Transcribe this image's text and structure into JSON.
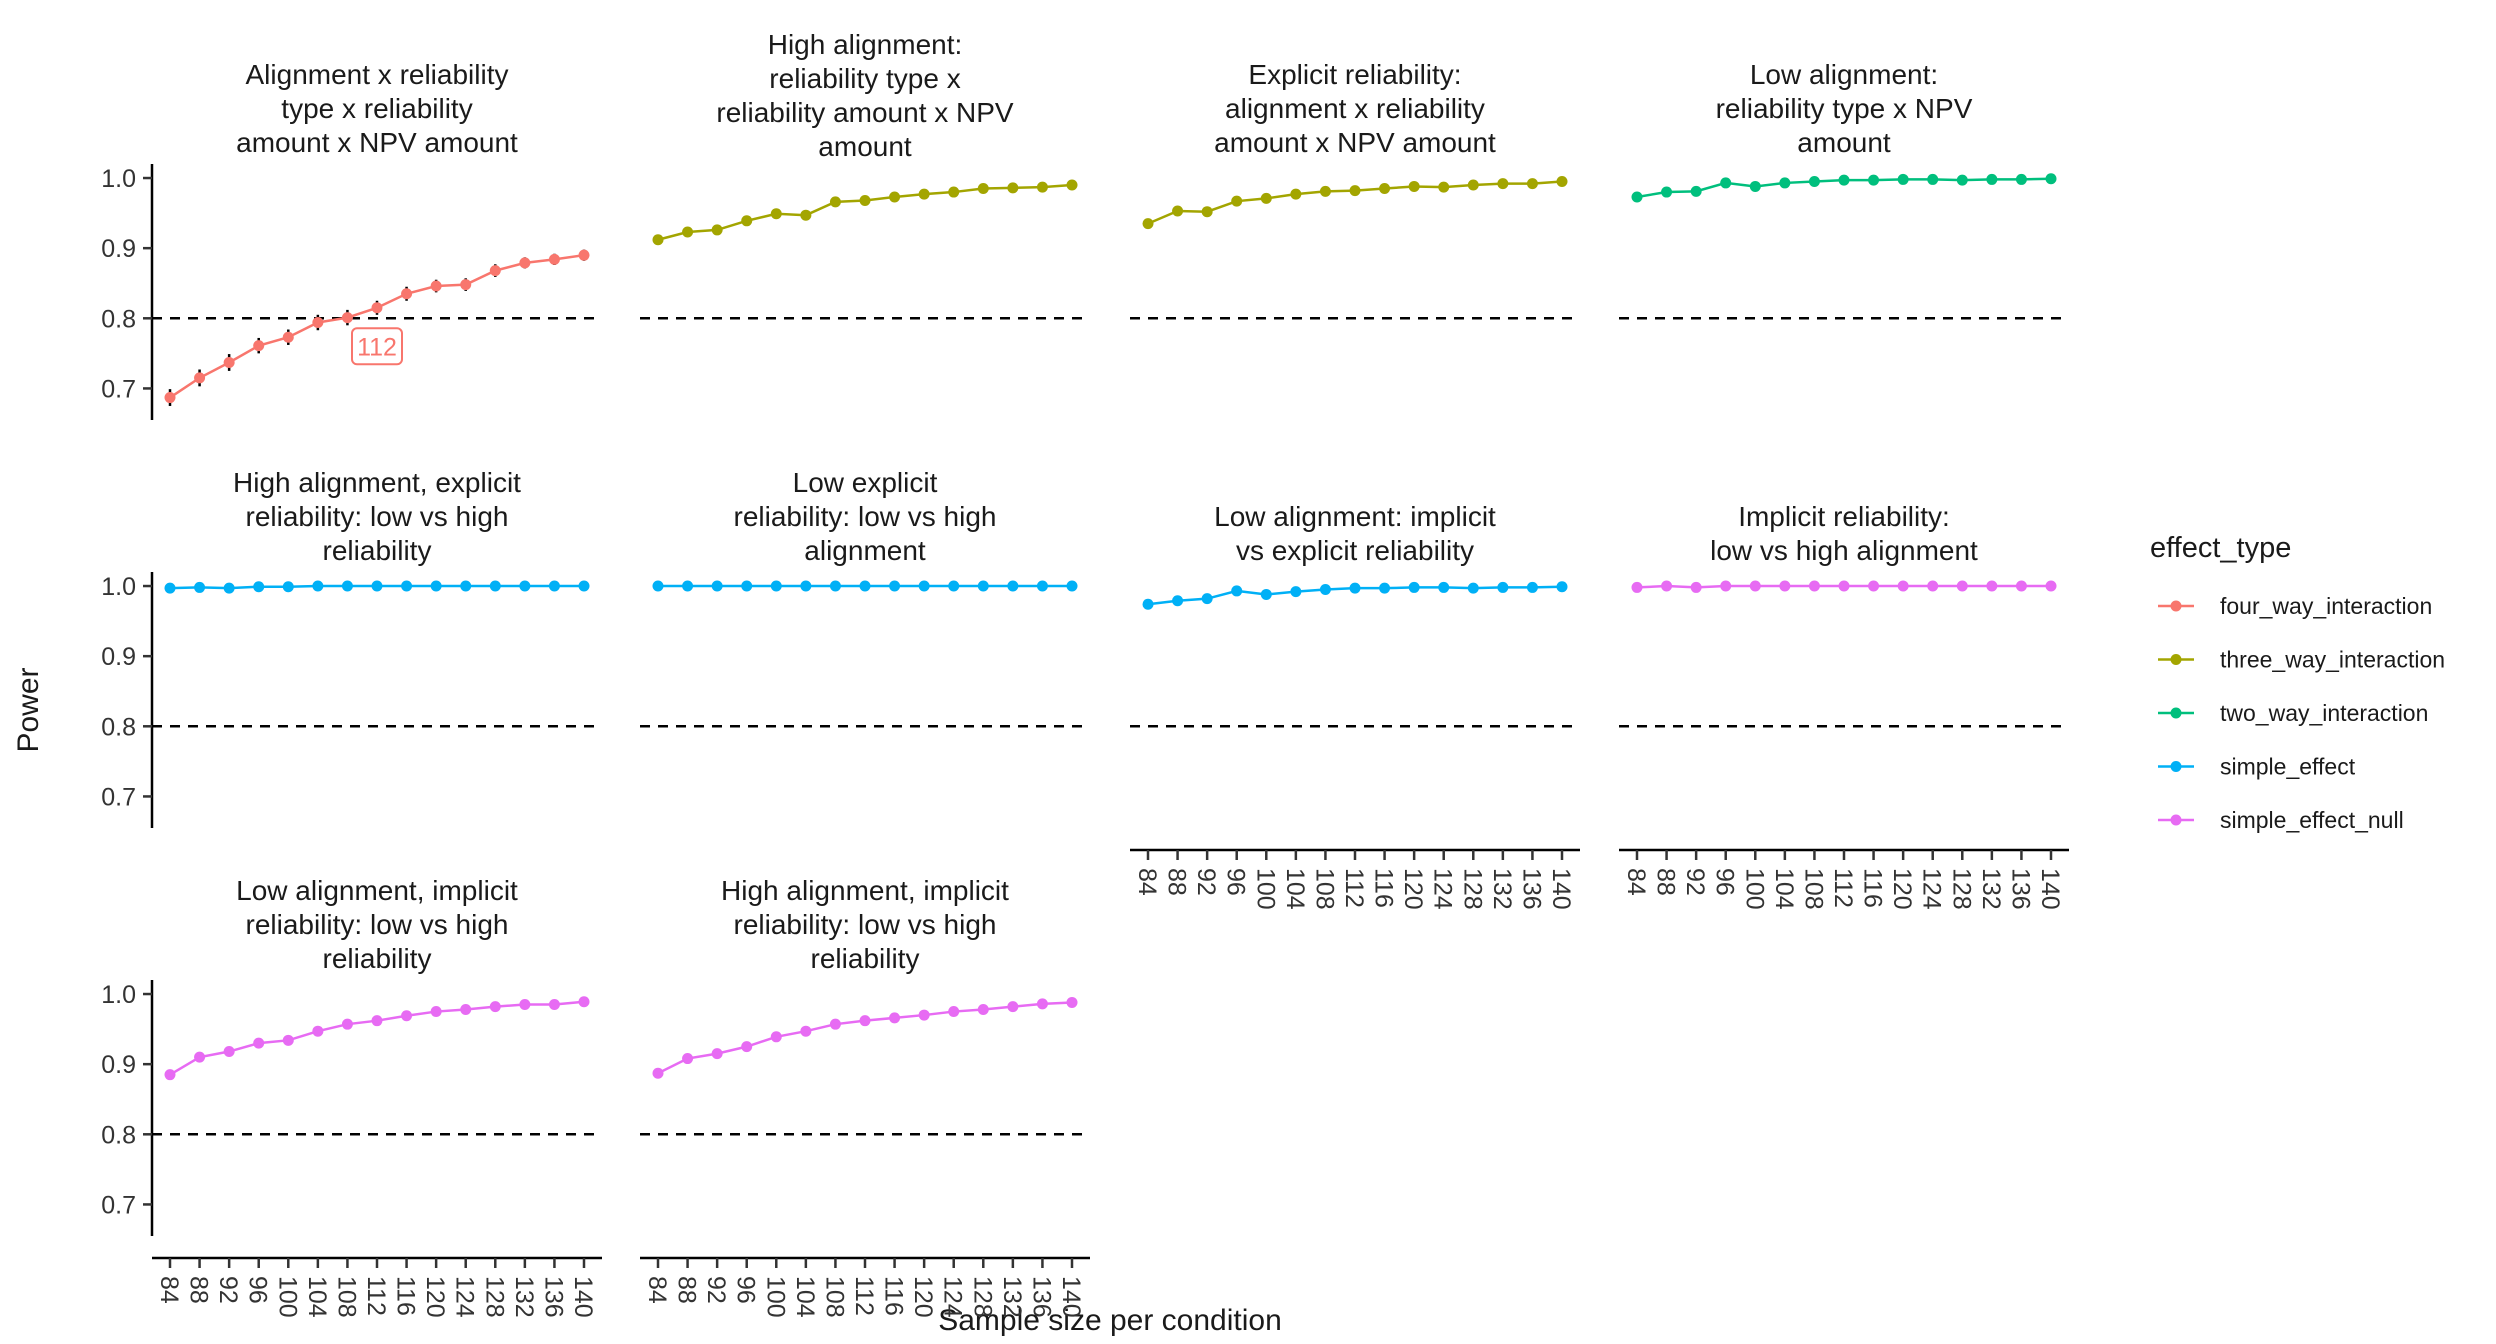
{
  "chart_data": {
    "type": "line",
    "xlabel": "Sample size per condition",
    "ylabel": "Power",
    "ylim": [
      0.655,
      1.02
    ],
    "yticks": [
      0.7,
      0.8,
      0.9,
      1.0
    ],
    "ytick_labels": [
      "0.7",
      "0.8",
      "0.9",
      "1.0"
    ],
    "reference_line": 0.8,
    "x": [
      84,
      88,
      92,
      96,
      100,
      104,
      108,
      112,
      116,
      120,
      124,
      128,
      132,
      136,
      140
    ],
    "x_labels": [
      "84",
      "88",
      "92",
      "96",
      "100",
      "104",
      "108",
      "112",
      "116",
      "120",
      "124",
      "128",
      "132",
      "136",
      "140"
    ],
    "legend": {
      "title": "effect_type",
      "position": "right",
      "entries": [
        {
          "name": "four_way_interaction",
          "color": "#F8766D"
        },
        {
          "name": "three_way_interaction",
          "color": "#A3A500"
        },
        {
          "name": "two_way_interaction",
          "color": "#00BF7D"
        },
        {
          "name": "simple_effect",
          "color": "#00B0F6"
        },
        {
          "name": "simple_effect_null",
          "color": "#E76BF3"
        }
      ]
    },
    "panels": [
      {
        "title_lines": [
          "Alignment x reliability",
          "type x reliability",
          "amount x NPV amount"
        ],
        "effect_type": "four_way_interaction",
        "color": "#F8766D",
        "values": [
          0.687,
          0.715,
          0.737,
          0.761,
          0.773,
          0.794,
          0.801,
          0.815,
          0.835,
          0.846,
          0.848,
          0.868,
          0.879,
          0.884,
          0.89
        ],
        "errors": [
          0.012,
          0.012,
          0.012,
          0.011,
          0.011,
          0.011,
          0.011,
          0.01,
          0.01,
          0.009,
          0.009,
          0.009,
          0.008,
          0.008,
          0.008
        ],
        "annotation": {
          "text": "112",
          "x": 112
        },
        "show_y_axis": true,
        "show_x_axis": false
      },
      {
        "title_lines": [
          "High alignment:",
          "reliability type x",
          "reliability amount x NPV",
          "amount"
        ],
        "effect_type": "three_way_interaction",
        "color": "#A3A500",
        "values": [
          0.912,
          0.923,
          0.926,
          0.939,
          0.949,
          0.947,
          0.966,
          0.968,
          0.973,
          0.977,
          0.98,
          0.985,
          0.986,
          0.987,
          0.99
        ],
        "show_y_axis": false,
        "show_x_axis": false
      },
      {
        "title_lines": [
          "Explicit reliability:",
          "alignment x reliability",
          "amount x NPV amount"
        ],
        "effect_type": "three_way_interaction",
        "color": "#A3A500",
        "values": [
          0.935,
          0.953,
          0.952,
          0.967,
          0.971,
          0.977,
          0.981,
          0.982,
          0.985,
          0.988,
          0.987,
          0.99,
          0.992,
          0.992,
          0.995
        ],
        "show_y_axis": false,
        "show_x_axis": false
      },
      {
        "title_lines": [
          "Low alignment:",
          "reliability type x NPV",
          "amount"
        ],
        "effect_type": "two_way_interaction",
        "color": "#00BF7D",
        "values": [
          0.973,
          0.98,
          0.981,
          0.993,
          0.988,
          0.993,
          0.995,
          0.997,
          0.997,
          0.998,
          0.998,
          0.997,
          0.998,
          0.998,
          0.999
        ],
        "show_y_axis": false,
        "show_x_axis": false
      },
      {
        "title_lines": [
          "High alignment, explicit",
          "reliability: low vs high",
          "reliability"
        ],
        "effect_type": "simple_effect",
        "color": "#00B0F6",
        "values": [
          0.997,
          0.998,
          0.997,
          0.999,
          0.999,
          1.0,
          1.0,
          1.0,
          1.0,
          1.0,
          1.0,
          1.0,
          1.0,
          1.0,
          1.0
        ],
        "show_y_axis": true,
        "show_x_axis": false
      },
      {
        "title_lines": [
          "Low explicit",
          "reliability: low vs high",
          "alignment"
        ],
        "effect_type": "simple_effect",
        "color": "#00B0F6",
        "values": [
          1.0,
          1.0,
          1.0,
          1.0,
          1.0,
          1.0,
          1.0,
          1.0,
          1.0,
          1.0,
          1.0,
          1.0,
          1.0,
          1.0,
          1.0
        ],
        "show_y_axis": false,
        "show_x_axis": false
      },
      {
        "title_lines": [
          "Low alignment: implicit",
          "vs explicit reliability"
        ],
        "effect_type": "simple_effect",
        "color": "#00B0F6",
        "values": [
          0.974,
          0.979,
          0.982,
          0.993,
          0.988,
          0.992,
          0.995,
          0.997,
          0.997,
          0.998,
          0.998,
          0.997,
          0.998,
          0.998,
          0.999
        ],
        "show_y_axis": false,
        "show_x_axis": true
      },
      {
        "title_lines": [
          "Implicit reliability:",
          "low vs high alignment"
        ],
        "effect_type": "simple_effect_null",
        "color": "#E76BF3",
        "values": [
          0.998,
          1.0,
          0.998,
          1.0,
          1.0,
          1.0,
          1.0,
          1.0,
          1.0,
          1.0,
          1.0,
          1.0,
          1.0,
          1.0,
          1.0
        ],
        "show_y_axis": false,
        "show_x_axis": true
      },
      {
        "title_lines": [
          "Low alignment, implicit",
          "reliability: low vs high",
          "reliability"
        ],
        "effect_type": "simple_effect_null",
        "color": "#E76BF3",
        "values": [
          0.885,
          0.91,
          0.918,
          0.93,
          0.934,
          0.947,
          0.957,
          0.962,
          0.969,
          0.975,
          0.978,
          0.982,
          0.985,
          0.985,
          0.989
        ],
        "show_y_axis": true,
        "show_x_axis": true
      },
      {
        "title_lines": [
          "High alignment, implicit",
          "reliability: low vs high",
          "reliability"
        ],
        "effect_type": "simple_effect_null",
        "color": "#E76BF3",
        "values": [
          0.887,
          0.908,
          0.915,
          0.925,
          0.939,
          0.947,
          0.957,
          0.962,
          0.966,
          0.97,
          0.975,
          0.978,
          0.982,
          0.986,
          0.988
        ],
        "show_y_axis": false,
        "show_x_axis": true
      }
    ]
  }
}
